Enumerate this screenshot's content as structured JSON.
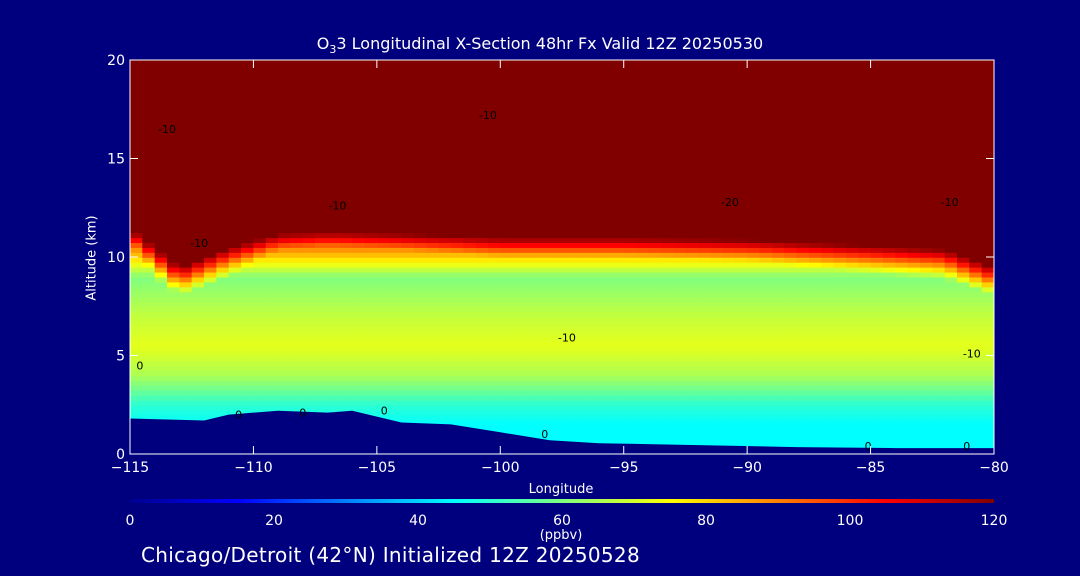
{
  "chart_data": {
    "type": "heatmap",
    "title_main": "3 Longitudinal X-Section 48hr  Fx Valid 12Z 20250530",
    "title_species": "O",
    "title_subscript": "3",
    "xlabel": "Longitude",
    "ylabel": "Altitude (km)",
    "xlim": [
      -115,
      -80
    ],
    "ylim": [
      0,
      20
    ],
    "x_ticks": [
      -115,
      -110,
      -105,
      -100,
      -95,
      -90,
      -85,
      -80
    ],
    "x_tick_labels": [
      "−115",
      "−110",
      "−105",
      "−100",
      "−95",
      "−90",
      "−85",
      "−80"
    ],
    "y_ticks": [
      0,
      5,
      10,
      15,
      20
    ],
    "y_tick_labels": [
      "0",
      "5",
      "10",
      "15",
      "20"
    ],
    "colorbar": {
      "label": "(ppbv)",
      "range": [
        0,
        120
      ],
      "ticks": [
        0,
        20,
        40,
        60,
        80,
        100,
        120
      ],
      "tick_labels": [
        "0",
        "20",
        "40",
        "60",
        "80",
        "100",
        "120"
      ],
      "colormap": "jet"
    },
    "terrain": [
      [
        -115,
        1.8
      ],
      [
        -112,
        1.7
      ],
      [
        -111,
        2.0
      ],
      [
        -109,
        2.2
      ],
      [
        -107,
        2.1
      ],
      [
        -106,
        2.2
      ],
      [
        -105,
        1.9
      ],
      [
        -104,
        1.6
      ],
      [
        -102,
        1.5
      ],
      [
        -100,
        1.1
      ],
      [
        -98,
        0.7
      ],
      [
        -96,
        0.55
      ],
      [
        -92,
        0.45
      ],
      [
        -88,
        0.35
      ],
      [
        -84,
        0.3
      ],
      [
        -80,
        0.3
      ]
    ],
    "ozone_profile_ppbv": [
      [
        0.5,
        45
      ],
      [
        1.5,
        45
      ],
      [
        2.5,
        50
      ],
      [
        4,
        65
      ],
      [
        5.5,
        72
      ],
      [
        7,
        68
      ],
      [
        9,
        60
      ],
      [
        10.5,
        90
      ],
      [
        12,
        120
      ],
      [
        20,
        120
      ]
    ],
    "tropopause_km": [
      [
        -115,
        11.5
      ],
      [
        -113,
        9.5
      ],
      [
        -111,
        10.5
      ],
      [
        -109,
        11.2
      ],
      [
        -107,
        11.3
      ],
      [
        -104,
        11.2
      ],
      [
        -100,
        11.0
      ],
      [
        -95,
        11.0
      ],
      [
        -90,
        10.9
      ],
      [
        -85,
        10.6
      ],
      [
        -82,
        10.4
      ],
      [
        -80,
        9.5
      ]
    ],
    "contour_labels": [
      {
        "text": "-10",
        "lon": -113.5,
        "alt": 16.3
      },
      {
        "text": "-10",
        "lon": -100.5,
        "alt": 17.0
      },
      {
        "text": "-10",
        "lon": -106.6,
        "alt": 12.4
      },
      {
        "text": "-20",
        "lon": -90.7,
        "alt": 12.6
      },
      {
        "text": "-10",
        "lon": -81.8,
        "alt": 12.6
      },
      {
        "text": "-10",
        "lon": -112.2,
        "alt": 10.5
      },
      {
        "text": "-10",
        "lon": -97.3,
        "alt": 5.7
      },
      {
        "text": "-10",
        "lon": -80.9,
        "alt": 4.9
      },
      {
        "text": "0",
        "lon": -114.6,
        "alt": 4.3
      },
      {
        "text": "0",
        "lon": -104.7,
        "alt": 2.0
      },
      {
        "text": "0",
        "lon": -98.2,
        "alt": 0.8
      },
      {
        "text": "0",
        "lon": -110.6,
        "alt": 1.8
      },
      {
        "text": "0",
        "lon": -108.0,
        "alt": 1.9
      },
      {
        "text": "0",
        "lon": -85.1,
        "alt": 0.2
      },
      {
        "text": "0",
        "lon": -81.1,
        "alt": 0.2
      }
    ]
  },
  "footer": "Chicago/Detroit (42°N) Initialized 12Z 20250528"
}
